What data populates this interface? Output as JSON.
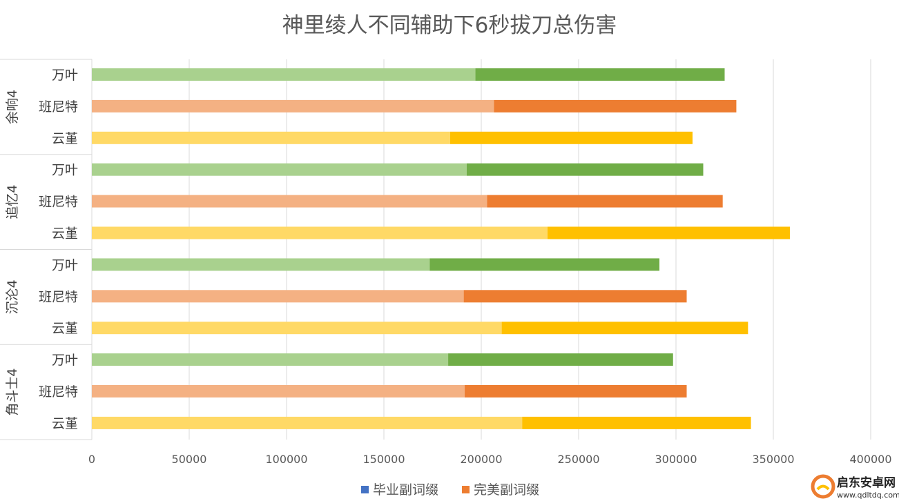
{
  "chart_data": {
    "type": "bar",
    "orientation": "horizontal",
    "stacked": true,
    "title": "神里绫人不同辅助下6秒拔刀总伤害",
    "xlabel": "",
    "ylabel": "",
    "xlim": [
      0,
      400000
    ],
    "x_ticks": [
      "0",
      "50000",
      "100000",
      "150000",
      "200000",
      "250000",
      "300000",
      "350000",
      "400000"
    ],
    "grid": "vertical",
    "legend_position": "bottom",
    "legend": [
      {
        "label": "毕业副词缀",
        "color": "#4472C4"
      },
      {
        "label": "完美副词缀",
        "color": "#ED7D31"
      }
    ],
    "groups": [
      {
        "name": "余响4",
        "categories": [
          {
            "label": "万叶",
            "base": 197000,
            "total": 325000,
            "color_light": "#A9D18E",
            "color_dark": "#70AD47"
          },
          {
            "label": "班尼特",
            "base": 206500,
            "total": 331000,
            "color_light": "#F4B183",
            "color_dark": "#ED7D31"
          },
          {
            "label": "云堇",
            "base": 184000,
            "total": 308500,
            "color_light": "#FFD966",
            "color_dark": "#FFC000"
          }
        ]
      },
      {
        "name": "追忆4",
        "categories": [
          {
            "label": "万叶",
            "base": 192500,
            "total": 314000,
            "color_light": "#A9D18E",
            "color_dark": "#70AD47"
          },
          {
            "label": "班尼特",
            "base": 203000,
            "total": 324000,
            "color_light": "#F4B183",
            "color_dark": "#ED7D31"
          },
          {
            "label": "云堇",
            "base": 234000,
            "total": 358500,
            "color_light": "#FFD966",
            "color_dark": "#FFC000"
          }
        ]
      },
      {
        "name": "沉沦4",
        "categories": [
          {
            "label": "万叶",
            "base": 173500,
            "total": 291500,
            "color_light": "#A9D18E",
            "color_dark": "#70AD47"
          },
          {
            "label": "班尼特",
            "base": 191000,
            "total": 305500,
            "color_light": "#F4B183",
            "color_dark": "#ED7D31"
          },
          {
            "label": "云堇",
            "base": 210500,
            "total": 337000,
            "color_light": "#FFD966",
            "color_dark": "#FFC000"
          }
        ]
      },
      {
        "name": "角斗士4",
        "categories": [
          {
            "label": "万叶",
            "base": 183000,
            "total": 298500,
            "color_light": "#A9D18E",
            "color_dark": "#70AD47"
          },
          {
            "label": "班尼特",
            "base": 191500,
            "total": 305500,
            "color_light": "#F4B183",
            "color_dark": "#ED7D31"
          },
          {
            "label": "云堇",
            "base": 221000,
            "total": 338500,
            "color_light": "#FFD966",
            "color_dark": "#FFC000"
          }
        ]
      }
    ]
  },
  "watermark": {
    "text_cn": "启东安卓网",
    "text_url": "www.qdltdq.com"
  }
}
